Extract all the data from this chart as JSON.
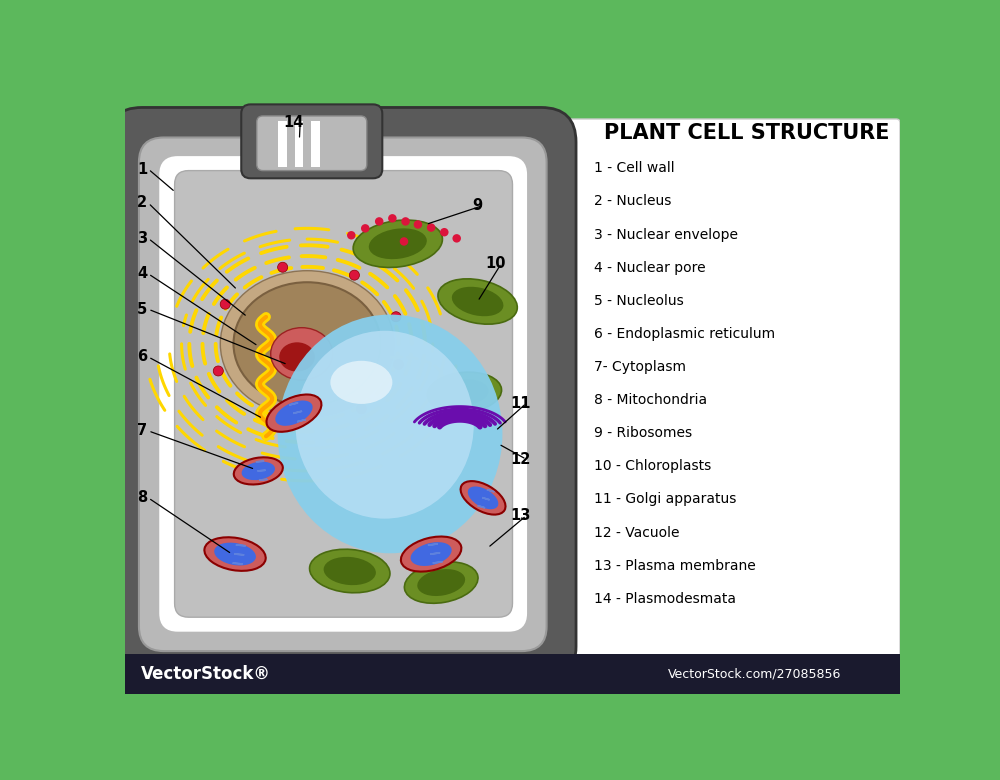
{
  "title": "PLANT CELL STRUCTURE",
  "background_green": "#5cb85c",
  "background_white": "#ffffff",
  "footer_dark": "#1a1a2e",
  "footer_text_left": "VectorStock®",
  "footer_text_right": "VectorStock.com/27085856",
  "legend": [
    "1 - Cell wall",
    "2 - Nucleus",
    "3 - Nuclear envelope",
    "4 - Nuclear pore",
    "5 - Nucleolus",
    "6 - Endoplasmic reticulum",
    "7- Cytoplasm",
    "8 - Mitochondria",
    "9 - Ribosomes",
    "10 - Chloroplasts",
    "11 - Golgi apparatus",
    "12 - Vacuole",
    "13 - Plasma membrane",
    "14 - Plasmodesmata"
  ],
  "cell_wall_dark": "#5a5a5a",
  "cell_wall_mid": "#888888",
  "cell_wall_light": "#b8b8b8",
  "cell_wall_white": "#e8e8e8",
  "cytoplasm_color": "#c0c0c0",
  "nucleus_outer": "#c4a882",
  "nucleus_body": "#a0835a",
  "nucleolus_color": "#cd5c5c",
  "nuclear_envelope_color": "#FFD700",
  "vacuole_color": "#87ceeb",
  "vacuole_light": "#c5e8f8",
  "chloroplast_outer": "#6b8e23",
  "chloroplast_inner": "#4a6b10",
  "mito_outer": "#cd5c5c",
  "mito_inner": "#4169e1",
  "er_color": "#FFD700",
  "golgi_color": "#6a0dad",
  "ribosome_color": "#dc143c",
  "annotation_color": "#000000"
}
